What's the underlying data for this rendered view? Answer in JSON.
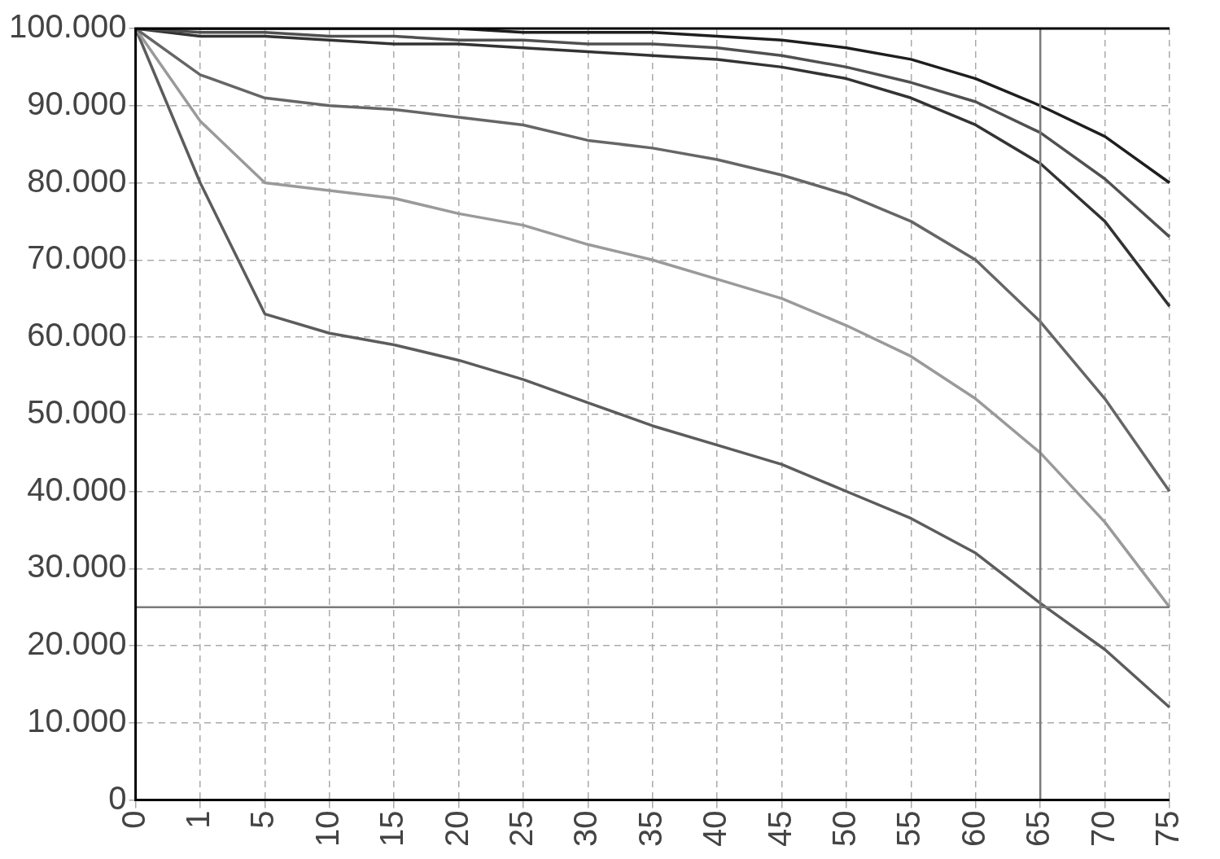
{
  "chart_data": {
    "type": "line",
    "categories": [
      "0",
      "1",
      "5",
      "10",
      "15",
      "20",
      "25",
      "30",
      "35",
      "40",
      "45",
      "50",
      "55",
      "60",
      "65",
      "70",
      "75"
    ],
    "ylim": [
      0,
      100000
    ],
    "yticks": [
      {
        "value": 0,
        "label": "0"
      },
      {
        "value": 10000,
        "label": "10.000"
      },
      {
        "value": 20000,
        "label": "20.000"
      },
      {
        "value": 30000,
        "label": "30.000"
      },
      {
        "value": 40000,
        "label": "40.000"
      },
      {
        "value": 50000,
        "label": "50.000"
      },
      {
        "value": 60000,
        "label": "60.000"
      },
      {
        "value": 70000,
        "label": "70.000"
      },
      {
        "value": 80000,
        "label": "80.000"
      },
      {
        "value": 90000,
        "label": "90.000"
      },
      {
        "value": 100000,
        "label": "100.000"
      }
    ],
    "grid": true,
    "legend": false,
    "marker": "none",
    "line_style": "solid",
    "series": [
      {
        "color": "#1e1e1e",
        "values": [
          100000,
          100000,
          100000,
          100000,
          100000,
          100000,
          99500,
          99500,
          99500,
          99000,
          98500,
          97500,
          96000,
          93500,
          90000,
          86000,
          80000
        ]
      },
      {
        "color": "#505050",
        "values": [
          100000,
          99500,
          99500,
          99000,
          99000,
          98500,
          98500,
          98000,
          98000,
          97500,
          96500,
          95000,
          93000,
          90500,
          86500,
          80500,
          73000
        ]
      },
      {
        "color": "#333333",
        "values": [
          100000,
          99000,
          99000,
          98500,
          98000,
          98000,
          97500,
          97000,
          96500,
          96000,
          95000,
          93500,
          91000,
          87500,
          82500,
          75000,
          64000
        ]
      },
      {
        "color": "#666666",
        "values": [
          100000,
          94000,
          91000,
          90000,
          89500,
          88500,
          87500,
          85500,
          84500,
          83000,
          81000,
          78500,
          75000,
          70000,
          62000,
          52000,
          40000
        ]
      },
      {
        "color": "#9a9a9a",
        "values": [
          100000,
          88000,
          80000,
          79000,
          78000,
          76000,
          74500,
          72000,
          70000,
          67500,
          65000,
          61500,
          57500,
          52000,
          45000,
          36000,
          25000
        ]
      },
      {
        "color": "#5c5c5c",
        "values": [
          100000,
          80000,
          63000,
          60500,
          59000,
          57000,
          54500,
          51500,
          48500,
          46000,
          43500,
          40000,
          36500,
          32000,
          25500,
          19500,
          12000
        ]
      }
    ],
    "ref_lines": [
      {
        "axis": "y",
        "value": 25000,
        "color": "#7a7a7a"
      },
      {
        "axis": "x",
        "value": "65",
        "color": "#7a7a7a"
      }
    ]
  }
}
